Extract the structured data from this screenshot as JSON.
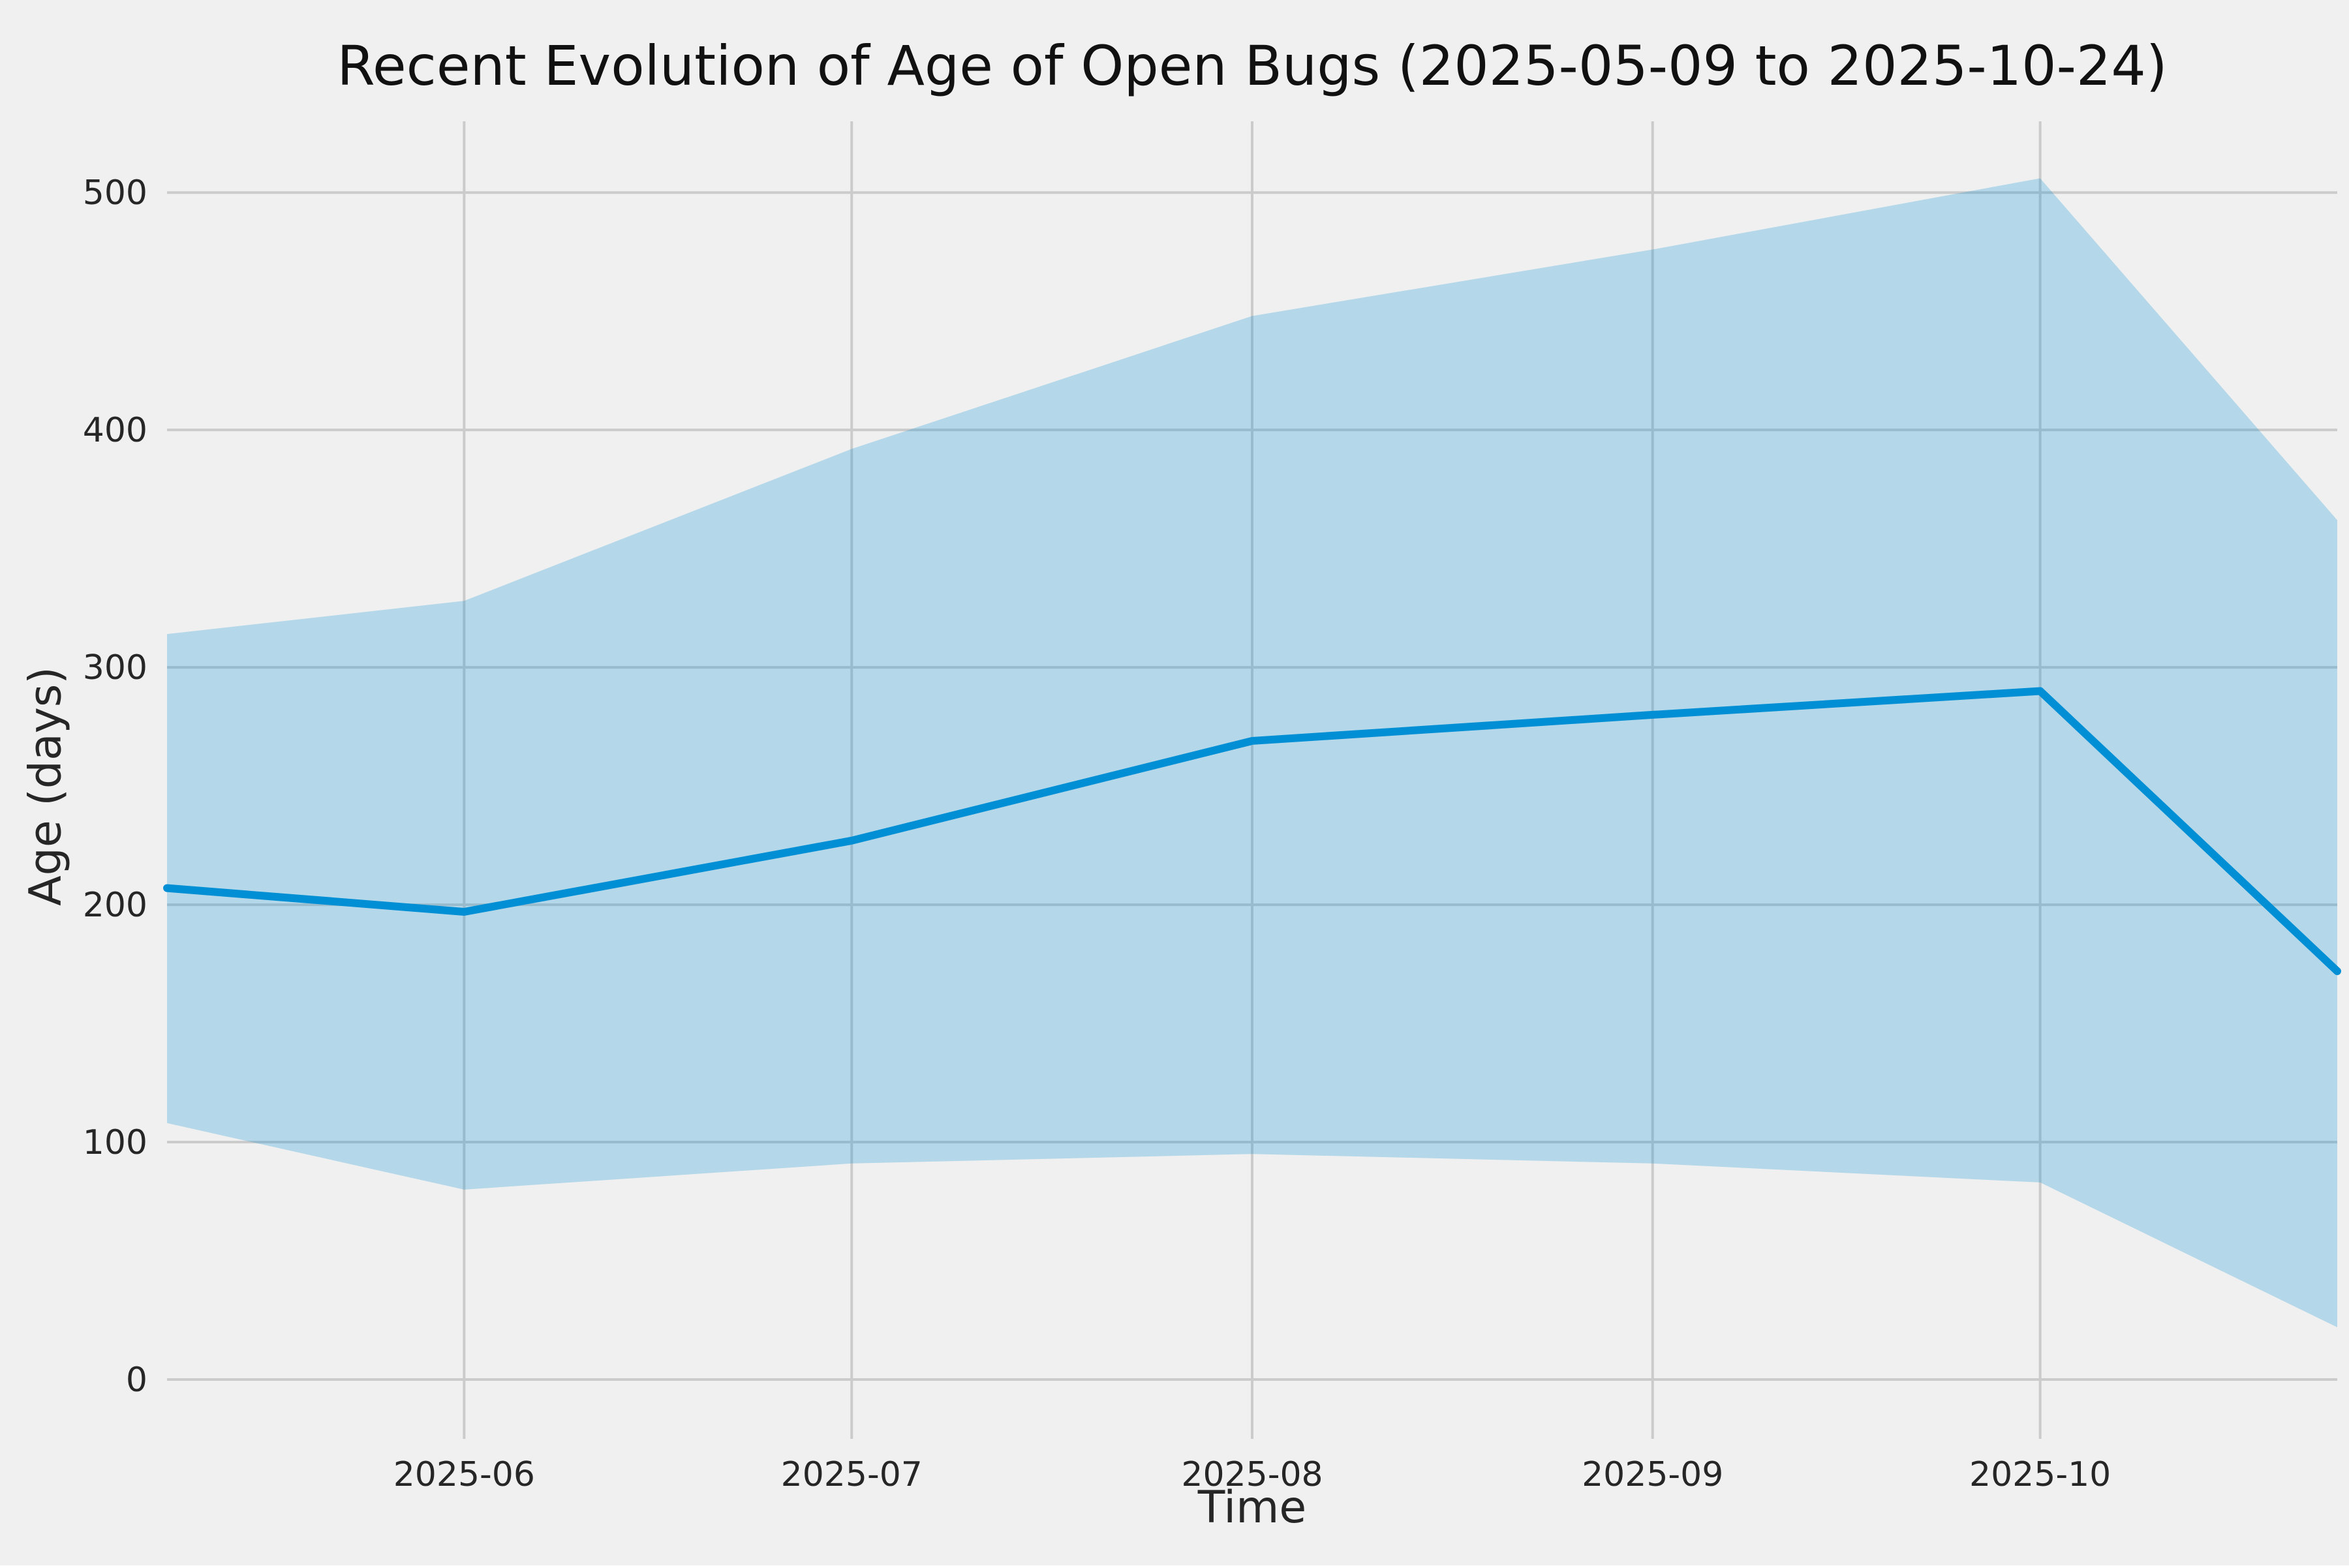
{
  "chart_data": {
    "type": "line",
    "title": "Recent Evolution of Age of Open Bugs (2025-05-09 to 2025-10-24)",
    "xlabel": "Time",
    "ylabel": "Age (days)",
    "x_days": [
      0,
      23,
      53,
      84,
      115,
      145,
      168
    ],
    "x_point_labels": [
      "2025-05-09",
      "2025-06-01",
      "2025-07-01",
      "2025-08-01",
      "2025-09-01",
      "2025-10-01",
      "2025-10-24"
    ],
    "series": [
      {
        "name": "mean_age",
        "values": [
          207,
          197,
          227,
          269,
          280,
          290,
          172
        ]
      },
      {
        "name": "upper_band",
        "values": [
          314,
          328,
          392,
          448,
          476,
          506,
          362
        ]
      },
      {
        "name": "lower_band",
        "values": [
          108,
          80,
          91,
          95,
          91,
          83,
          22
        ]
      }
    ],
    "xticks": [
      {
        "pos": 23,
        "label": "2025-06"
      },
      {
        "pos": 53,
        "label": "2025-07"
      },
      {
        "pos": 84,
        "label": "2025-08"
      },
      {
        "pos": 115,
        "label": "2025-09"
      },
      {
        "pos": 145,
        "label": "2025-10"
      }
    ],
    "yticks": [
      0,
      100,
      200,
      300,
      400,
      500
    ],
    "xlim": [
      0,
      168
    ],
    "ylim": [
      -25,
      530
    ],
    "grid": true,
    "legend": "none",
    "colors": {
      "line": "#008fd5",
      "band": "#008fd5",
      "band_opacity": 0.25,
      "background": "#f0f0f0",
      "grid": "#cbcbcb",
      "text": "#262626"
    }
  }
}
